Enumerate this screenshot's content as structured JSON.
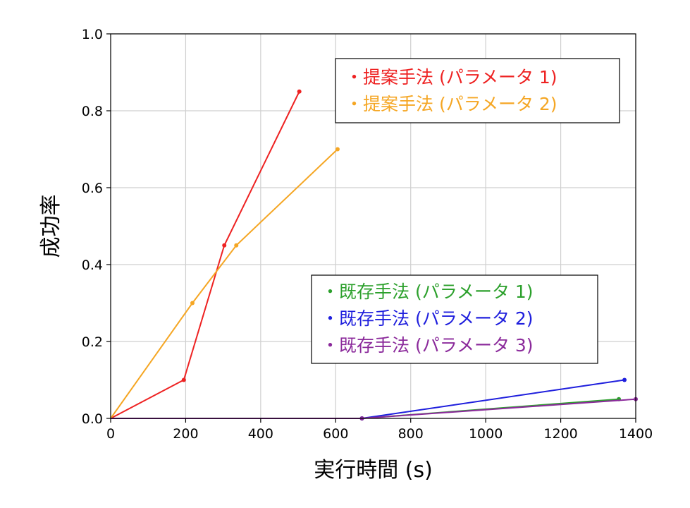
{
  "chart_data": {
    "type": "line",
    "xlabel": "実行時間 (s)",
    "ylabel": "成功率",
    "xlim": [
      0,
      1400
    ],
    "ylim": [
      0,
      1.0
    ],
    "grid": true,
    "x_ticks": [
      0,
      200,
      400,
      600,
      800,
      1000,
      1200,
      1400
    ],
    "y_ticks": [
      0.0,
      0.2,
      0.4,
      0.6,
      0.8,
      1.0
    ],
    "x_tick_labels": [
      "0",
      "200",
      "400",
      "600",
      "800",
      "1000",
      "1200",
      "1400"
    ],
    "y_tick_labels": [
      "0.0",
      "0.2",
      "0.4",
      "0.6",
      "0.8",
      "1.0"
    ],
    "series": [
      {
        "name": "・提案手法 (パラメータ 1)",
        "color": "#ee2222",
        "x": [
          0,
          195,
          303,
          503
        ],
        "y": [
          0.0,
          0.1,
          0.45,
          0.85
        ]
      },
      {
        "name": "・提案手法 (パラメータ 2)",
        "color": "#f5a623",
        "x": [
          0,
          218,
          335,
          605
        ],
        "y": [
          0.0,
          0.3,
          0.45,
          0.7
        ]
      },
      {
        "name": "・既存手法 (パラメータ 1)",
        "color": "#2ca02c",
        "x": [
          0,
          670,
          1355
        ],
        "y": [
          0.0,
          0.0,
          0.05
        ]
      },
      {
        "name": "・既存手法 (パラメータ 2)",
        "color": "#1f1fdd",
        "x": [
          0,
          670,
          1370
        ],
        "y": [
          0.0,
          0.0,
          0.1
        ]
      },
      {
        "name": "・既存手法 (パラメータ 3)",
        "color": "#8b2a9b",
        "x": [
          0,
          670,
          1400
        ],
        "y": [
          0.0,
          0.0,
          0.05
        ]
      }
    ],
    "legends": [
      {
        "position": "top-right",
        "series_indices": [
          0,
          1
        ]
      },
      {
        "position": "center-right",
        "series_indices": [
          2,
          3,
          4
        ]
      }
    ]
  }
}
